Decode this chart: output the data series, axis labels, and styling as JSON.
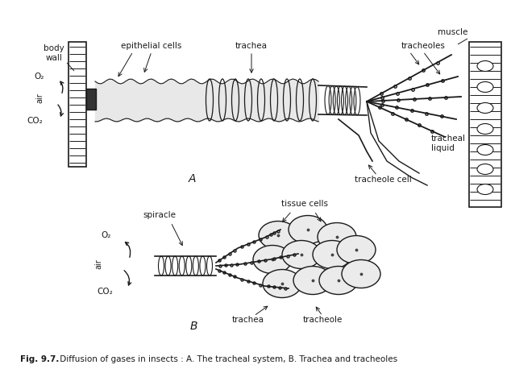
{
  "title": "Diffusion of Gases in Insects",
  "caption_bold_prefix": "Fig. 9.7.",
  "caption_regular": " Diffusion of gases in insects : A. The tracheal system, B. Trachea and tracheoles",
  "bg_color": "#ffffff",
  "fig_width": 6.34,
  "fig_height": 4.63,
  "dpi": 100,
  "labels": {
    "body_wall": "body\nwall",
    "epithelial_cells": "epithelial cells",
    "trachea_A": "trachea",
    "muscle": "muscle",
    "tracheoles": "tracheoles",
    "tracheole_cell": "tracheole cell",
    "tracheal_liquid": "tracheal\nliquid",
    "tissue_cells": "tissue cells",
    "spiracle": "spiracle",
    "air_label": "air",
    "O2": "O₂",
    "CO2": "CO₂",
    "trachea_B": "trachea",
    "tracheole_B": "tracheole",
    "A_label": "A",
    "B_label": "B"
  },
  "annotation_color": "#1a1a1a",
  "line_color": "#1a1a1a"
}
